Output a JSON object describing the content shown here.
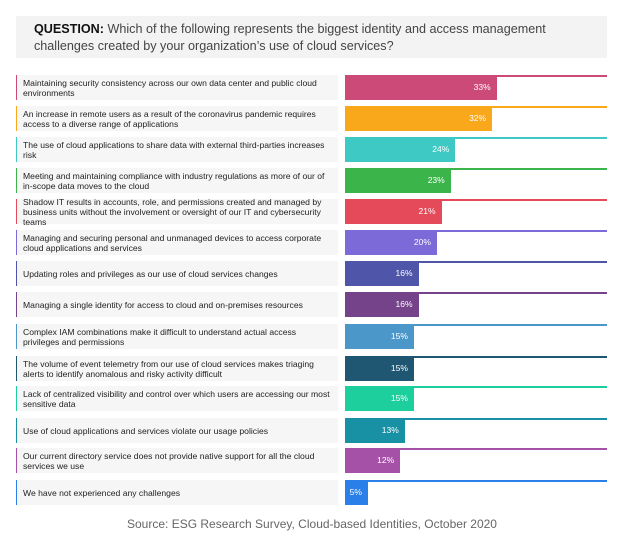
{
  "question": {
    "label": "QUESTION:",
    "text": " Which of the following represents the biggest identity and access management challenges created by your organization’s use of cloud services?"
  },
  "chart_data": {
    "type": "bar",
    "orientation": "horizontal",
    "xlim": [
      0,
      57
    ],
    "categories": [
      "Maintaining security consistency across our own data center and public cloud environments",
      "An increase in remote users as a result of the coronavirus pandemic requires access to a diverse range of applications",
      "The use of cloud applications to share data with external third-parties increases risk",
      "Meeting and maintaining compliance with industry regulations as more of our of in-scope data moves to the cloud",
      "Shadow IT results in accounts, role, and permissions created and managed by business units without the involvement or oversight of our IT and cybersecurity teams",
      "Managing and securing personal and unmanaged devices to access corporate cloud applications and services",
      "Updating roles and privileges as our use of cloud services changes",
      "Managing a single identity for access to cloud and on-premises resources",
      "Complex IAM combinations make it difficult to understand actual access privileges and permissions",
      "The volume of event telemetry from our use of cloud services makes triaging alerts to identify anomalous and risky activity difficult",
      "Lack of centralized visibility and control over which users are accessing our most sensitive data",
      "Use of cloud applications and services violate our usage policies",
      "Our current directory service does not provide native support for all the cloud services we use",
      "We have not experienced any challenges"
    ],
    "values": [
      33,
      32,
      24,
      23,
      21,
      20,
      16,
      16,
      15,
      15,
      15,
      13,
      12,
      5
    ],
    "data_labels": [
      "33%",
      "32%",
      "24%",
      "23%",
      "21%",
      "20%",
      "16%",
      "16%",
      "15%",
      "15%",
      "15%",
      "13%",
      "12%",
      "5%"
    ],
    "colors": [
      "#cc4a78",
      "#f9a81b",
      "#3ec9c4",
      "#3bb54a",
      "#e54a5a",
      "#7b6ad8",
      "#4f55a8",
      "#74438a",
      "#4c97c9",
      "#1f5672",
      "#1dcf9c",
      "#1891a4",
      "#a651a8",
      "#2b7fe8"
    ],
    "grid": false
  },
  "source": "Source: ESG Research Survey, Cloud-based Identities, October 2020"
}
